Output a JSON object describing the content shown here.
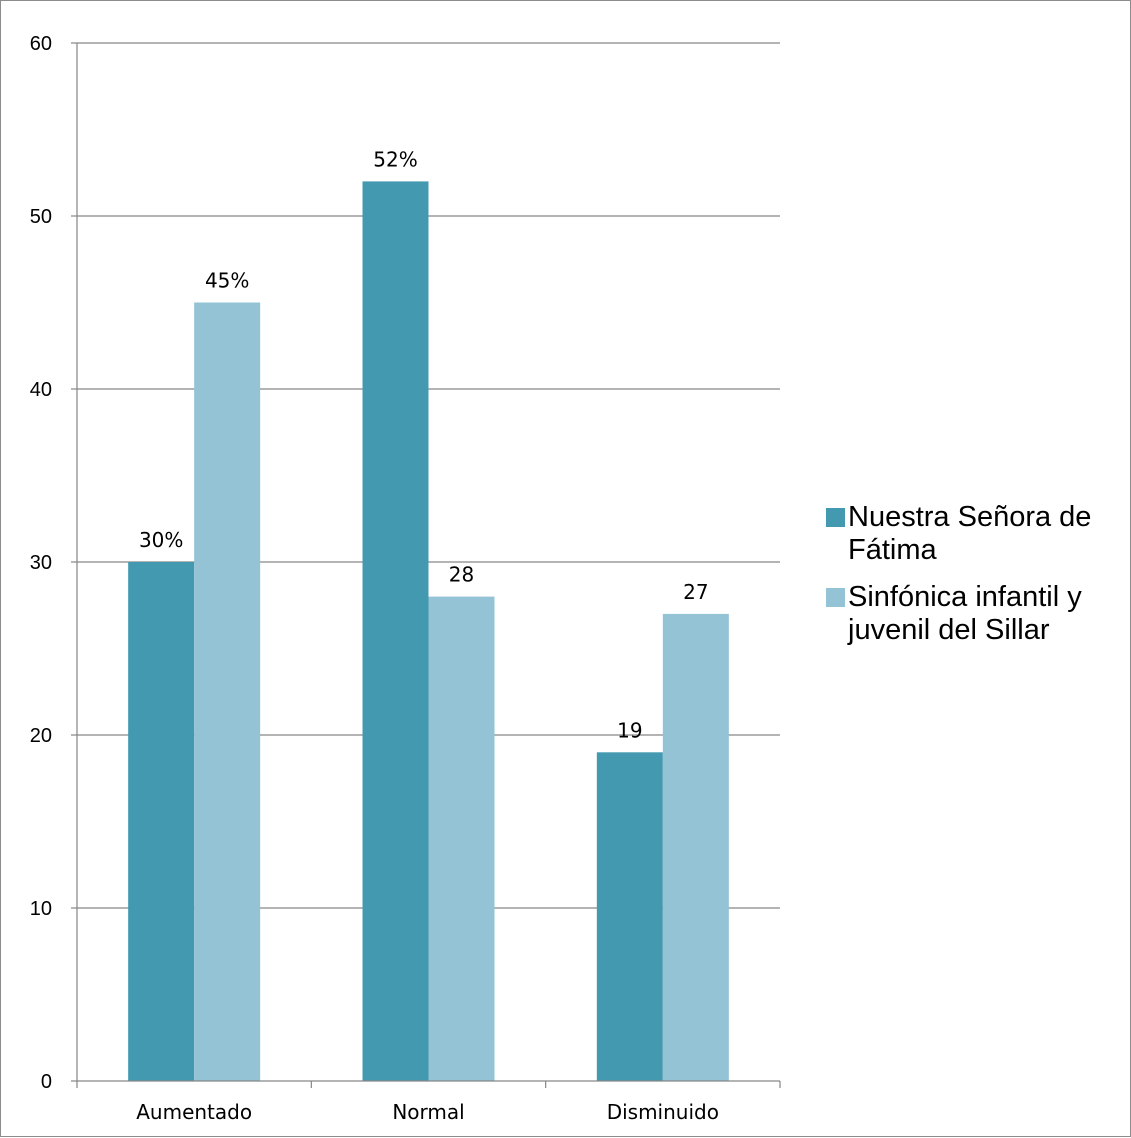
{
  "chart_data": {
    "type": "bar",
    "categories": [
      "Aumentado",
      "Normal",
      "Disminuido"
    ],
    "series": [
      {
        "name": "Nuestra Señora de Fátima",
        "values": [
          30,
          52,
          19
        ],
        "labels": [
          "30%",
          "52%",
          "19"
        ],
        "color": "#4399b0"
      },
      {
        "name": "Sinfónica infantil y juvenil del Sillar",
        "values": [
          45,
          28,
          27
        ],
        "labels": [
          "45%",
          "28",
          "27"
        ],
        "color": "#93c3d4"
      }
    ],
    "yticks": [
      "0",
      "10",
      "20",
      "30",
      "40",
      "50",
      "60"
    ],
    "ylim": [
      0,
      60
    ],
    "grid": true,
    "legend_position": "right",
    "title": "",
    "xlabel": "",
    "ylabel": ""
  }
}
